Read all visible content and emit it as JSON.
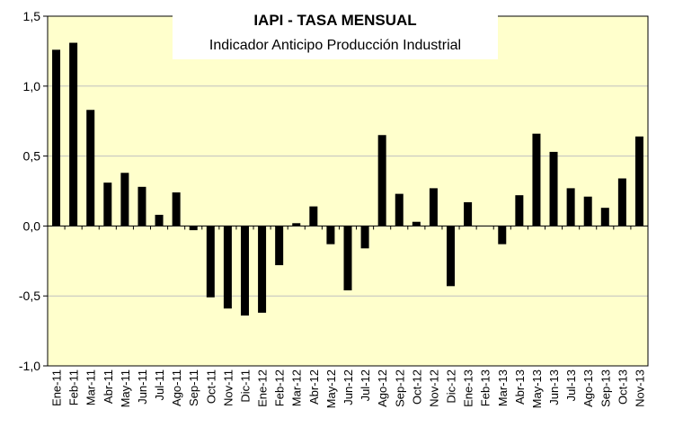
{
  "colors": {
    "plot_bg": "#ffffcc",
    "bar": "#000000",
    "grid": "#c0c0c0"
  },
  "chart_data": {
    "type": "bar",
    "title": "IAPI - TASA MENSUAL",
    "subtitle": "Indicador Anticipo Producción Industrial",
    "xlabel": "",
    "ylabel": "",
    "ylim": [
      -1.0,
      1.5
    ],
    "yticks": [
      1.5,
      1.0,
      0.5,
      0.0,
      -0.5,
      -1.0
    ],
    "ytick_labels": [
      "1,5",
      "1,0",
      "0,5",
      "0,0",
      "-0,5",
      "-1,0"
    ],
    "grid": true,
    "categories": [
      "Ene-11",
      "Feb-11",
      "Mar-11",
      "Abr-11",
      "May-11",
      "Jun-11",
      "Jul-11",
      "Ago-11",
      "Sep-11",
      "Oct-11",
      "Nov-11",
      "Dic-11",
      "Ene-12",
      "Feb-12",
      "Mar-12",
      "Abr-12",
      "May-12",
      "Jun-12",
      "Jul-12",
      "Ago-12",
      "Sep-12",
      "Oct-12",
      "Nov-12",
      "Dic-12",
      "Ene-13",
      "Feb-13",
      "Mar-13",
      "Abr-13",
      "May-13",
      "Jun-13",
      "Jul-13",
      "Ago-13",
      "Sep-13",
      "Oct-13",
      "Nov-13"
    ],
    "values": [
      1.26,
      1.31,
      0.83,
      0.31,
      0.38,
      0.28,
      0.08,
      0.24,
      -0.03,
      -0.51,
      -0.59,
      -0.64,
      -0.62,
      -0.28,
      0.02,
      0.14,
      -0.13,
      -0.46,
      -0.16,
      0.65,
      0.23,
      0.03,
      0.27,
      -0.43,
      0.17,
      0.0,
      -0.13,
      0.22,
      0.66,
      0.53,
      0.27,
      0.21,
      0.13,
      0.34,
      0.64
    ]
  }
}
